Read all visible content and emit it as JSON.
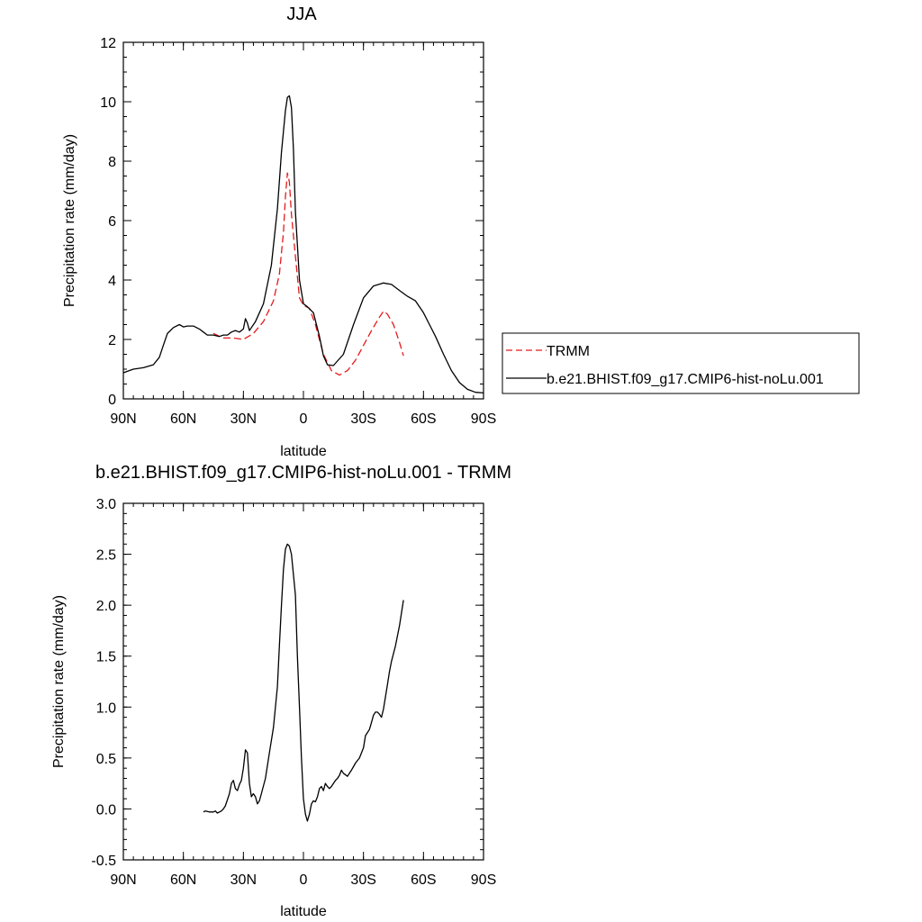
{
  "chart_data": [
    {
      "type": "line",
      "title": "JJA",
      "xlabel": "latitude",
      "ylabel": "Precipitation rate (mm/day)",
      "xlim": [
        90,
        -90
      ],
      "ylim": [
        0,
        12
      ],
      "x_ticks": [
        90,
        60,
        30,
        0,
        -30,
        -60,
        -90
      ],
      "x_tick_labels": [
        "90N",
        "60N",
        "30N",
        "0",
        "30S",
        "60S",
        "90S"
      ],
      "y_ticks": [
        0,
        2,
        4,
        6,
        8,
        10,
        12
      ],
      "y_tick_labels": [
        "0",
        "2",
        "4",
        "6",
        "8",
        "10",
        "12"
      ],
      "grid": false,
      "legend_position": "right",
      "series": [
        {
          "name": "TRMM",
          "color": "#e41a1c",
          "dash": "dashed",
          "x": [
            45,
            40,
            35,
            30,
            25,
            20,
            15,
            12,
            10,
            9,
            8,
            7,
            6,
            4,
            2,
            0,
            -3,
            -6,
            -10,
            -14,
            -18,
            -22,
            -26,
            -30,
            -34,
            -38,
            -40,
            -42,
            -45,
            -48,
            -50
          ],
          "y": [
            2.2,
            2.05,
            2.05,
            2.0,
            2.2,
            2.6,
            3.3,
            4.2,
            5.6,
            6.8,
            7.6,
            7.3,
            6.2,
            4.8,
            3.4,
            3.15,
            3.05,
            2.5,
            1.5,
            0.95,
            0.8,
            0.95,
            1.3,
            1.8,
            2.3,
            2.75,
            2.95,
            2.85,
            2.5,
            1.9,
            1.45
          ]
        },
        {
          "name": "b.e21.BHIST.f09_g17.CMIP6-hist-noLu.001",
          "color": "#000000",
          "dash": "solid",
          "x": [
            90,
            85,
            80,
            75,
            72,
            70,
            68,
            65,
            62,
            60,
            58,
            55,
            52,
            50,
            48,
            45,
            42,
            40,
            38,
            36,
            34,
            32,
            30,
            29,
            28,
            27,
            26,
            24,
            20,
            16,
            13,
            11,
            9,
            8,
            7,
            6,
            5,
            4,
            2,
            0,
            -2,
            -5,
            -8,
            -10,
            -12,
            -15,
            -20,
            -25,
            -30,
            -35,
            -40,
            -44,
            -48,
            -52,
            -56,
            -60,
            -63,
            -66,
            -70,
            -74,
            -78,
            -82,
            -86,
            -90
          ],
          "y": [
            0.88,
            1.0,
            1.05,
            1.15,
            1.4,
            1.8,
            2.2,
            2.4,
            2.5,
            2.42,
            2.45,
            2.45,
            2.35,
            2.25,
            2.15,
            2.15,
            2.1,
            2.15,
            2.15,
            2.25,
            2.3,
            2.25,
            2.35,
            2.7,
            2.55,
            2.3,
            2.4,
            2.6,
            3.2,
            4.5,
            6.4,
            8.3,
            9.7,
            10.15,
            10.2,
            9.8,
            8.4,
            6.3,
            4.0,
            3.2,
            3.1,
            2.9,
            2.1,
            1.45,
            1.15,
            1.12,
            1.5,
            2.5,
            3.4,
            3.8,
            3.9,
            3.85,
            3.65,
            3.45,
            3.3,
            2.9,
            2.5,
            2.1,
            1.5,
            0.95,
            0.55,
            0.32,
            0.22,
            0.2
          ]
        }
      ]
    },
    {
      "type": "line",
      "title": "b.e21.BHIST.f09_g17.CMIP6-hist-noLu.001 - TRMM",
      "xlabel": "latitude",
      "ylabel": "Precipitation rate (mm/day)",
      "xlim": [
        90,
        -90
      ],
      "ylim": [
        -0.5,
        3.0
      ],
      "x_ticks": [
        90,
        60,
        30,
        0,
        -30,
        -60,
        -90
      ],
      "x_tick_labels": [
        "90N",
        "60N",
        "30N",
        "0",
        "30S",
        "60S",
        "90S"
      ],
      "y_ticks": [
        -0.5,
        0.0,
        0.5,
        1.0,
        1.5,
        2.0,
        2.5,
        3.0
      ],
      "y_tick_labels": [
        "-0.5",
        "0.0",
        "0.5",
        "1.0",
        "1.5",
        "2.0",
        "2.5",
        "3.0"
      ],
      "grid": false,
      "series": [
        {
          "color": "#000000",
          "dash": "solid",
          "x": [
            50,
            49,
            47,
            45,
            44,
            43,
            42,
            41,
            40,
            39,
            37,
            36,
            35,
            34,
            33,
            32,
            31,
            30,
            29,
            28,
            27,
            26,
            25,
            24,
            23,
            22,
            21,
            19,
            17,
            15,
            13,
            12,
            11,
            10,
            9,
            8,
            7,
            6,
            5,
            4,
            3,
            2,
            1,
            0,
            -1,
            -2,
            -3,
            -4,
            -5,
            -6,
            -7,
            -8,
            -9,
            -10,
            -11,
            -12,
            -13,
            -14,
            -15,
            -16,
            -17,
            -18,
            -19,
            -20,
            -22,
            -24,
            -26,
            -28,
            -30,
            -31,
            -32,
            -33,
            -34,
            -35,
            -36,
            -37,
            -38,
            -39,
            -40,
            -41,
            -42,
            -43,
            -44,
            -46,
            -48,
            -50
          ],
          "y": [
            -0.03,
            -0.02,
            -0.03,
            -0.03,
            -0.02,
            -0.04,
            -0.03,
            -0.02,
            0.0,
            0.03,
            0.15,
            0.25,
            0.28,
            0.2,
            0.18,
            0.24,
            0.28,
            0.4,
            0.58,
            0.55,
            0.25,
            0.12,
            0.15,
            0.12,
            0.05,
            0.08,
            0.15,
            0.3,
            0.55,
            0.8,
            1.2,
            1.6,
            2.0,
            2.35,
            2.55,
            2.6,
            2.58,
            2.5,
            2.3,
            2.1,
            1.5,
            1.0,
            0.5,
            0.1,
            -0.05,
            -0.12,
            -0.05,
            0.05,
            0.08,
            0.07,
            0.12,
            0.2,
            0.22,
            0.18,
            0.25,
            0.22,
            0.2,
            0.22,
            0.25,
            0.28,
            0.3,
            0.33,
            0.38,
            0.35,
            0.32,
            0.38,
            0.45,
            0.5,
            0.6,
            0.72,
            0.75,
            0.78,
            0.85,
            0.92,
            0.95,
            0.95,
            0.93,
            0.9,
            0.98,
            1.1,
            1.22,
            1.35,
            1.45,
            1.6,
            1.8,
            2.05
          ]
        }
      ]
    }
  ]
}
